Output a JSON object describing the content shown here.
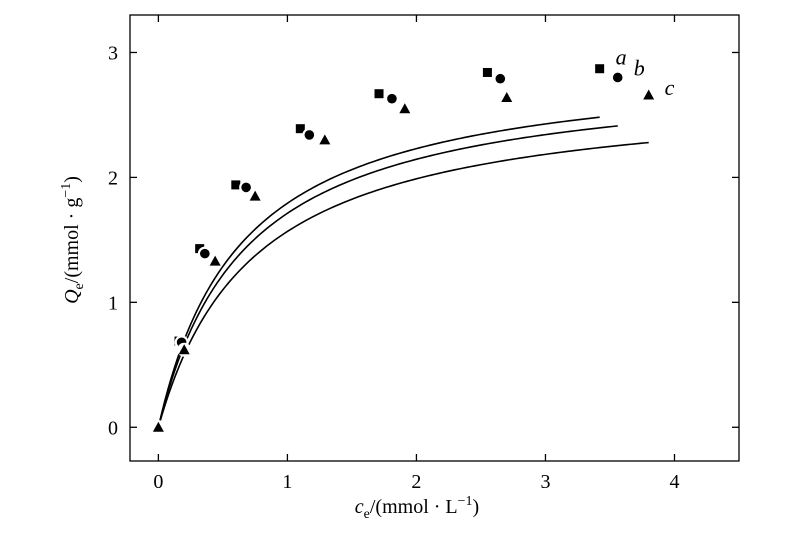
{
  "chart_data": {
    "type": "scatter",
    "title": "",
    "xlabel": "c_e/(mmol · L^−1)",
    "ylabel": "Q_e/(mmol · g^−1)",
    "x_axis": {
      "symbol": "c",
      "subscript": "e",
      "unit": "/(mmol · L",
      "unit_exp": "−1",
      "unit_close": ")"
    },
    "y_axis": {
      "symbol": "Q",
      "subscript": "e",
      "unit": "/(mmol · g",
      "unit_exp": "−1",
      "unit_close": ")"
    },
    "xlim": [
      -0.22,
      4.5
    ],
    "ylim": [
      -0.27,
      3.3
    ],
    "xticks": [
      0,
      1,
      2,
      3,
      4
    ],
    "yticks": [
      0,
      1,
      2,
      3
    ],
    "grid": false,
    "legend": "none",
    "series": [
      {
        "name": "a",
        "marker": "square",
        "x": [
          0,
          0.16,
          0.32,
          0.6,
          1.1,
          1.71,
          2.55,
          3.42
        ],
        "y": [
          0,
          0.69,
          1.43,
          1.94,
          2.39,
          2.67,
          2.84,
          2.87
        ],
        "fit": {
          "qmax": 2.95,
          "k": 1.55,
          "x_end": 3.42
        }
      },
      {
        "name": "b",
        "marker": "circle",
        "x": [
          0,
          0.18,
          0.36,
          0.68,
          1.17,
          1.81,
          2.65,
          3.56
        ],
        "y": [
          0,
          0.68,
          1.39,
          1.92,
          2.34,
          2.63,
          2.79,
          2.8
        ],
        "fit": {
          "qmax": 2.87,
          "k": 1.48,
          "x_end": 3.56
        }
      },
      {
        "name": "c",
        "marker": "triangle",
        "x": [
          0,
          0.2,
          0.44,
          0.75,
          1.29,
          1.91,
          2.7,
          3.8
        ],
        "y": [
          0,
          0.62,
          1.33,
          1.85,
          2.3,
          2.55,
          2.64,
          2.66
        ],
        "fit": {
          "qmax": 2.72,
          "k": 1.36,
          "x_end": 3.8
        }
      }
    ]
  }
}
